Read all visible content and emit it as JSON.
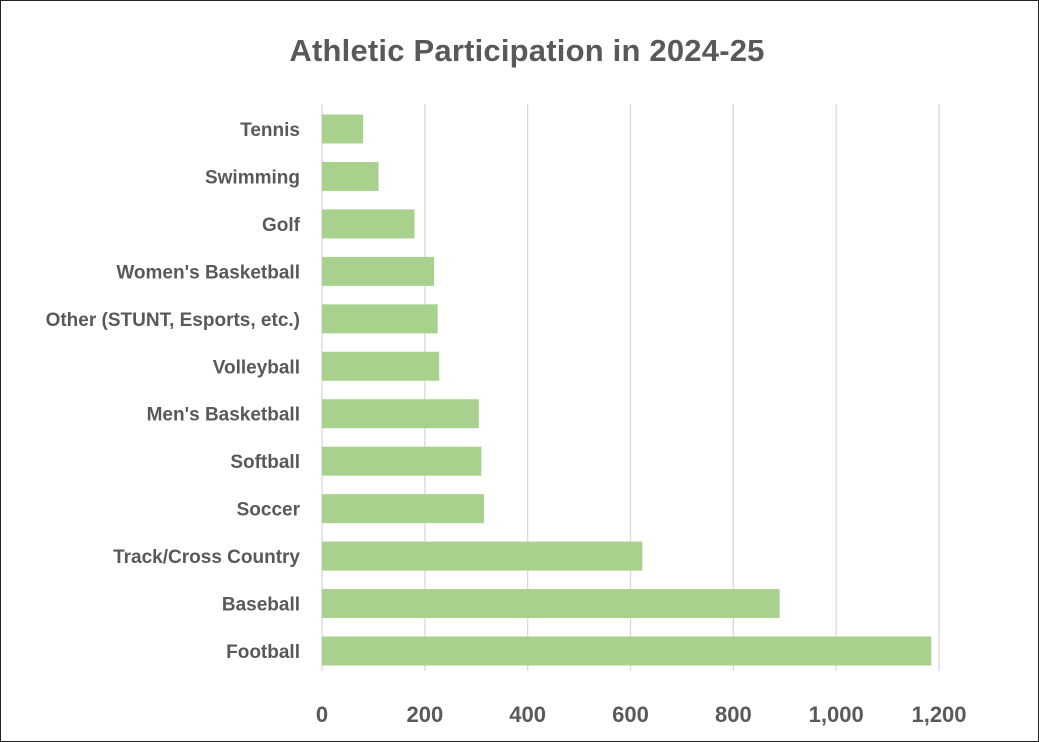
{
  "chart_data": {
    "type": "bar",
    "orientation": "horizontal",
    "title": "Athletic Participation in 2024-25",
    "xlabel": "",
    "ylabel": "",
    "categories": [
      "Tennis",
      "Swimming",
      "Golf",
      "Women's Basketball",
      "Other (STUNT, Esports, etc.)",
      "Volleyball",
      "Men's Basketball",
      "Softball",
      "Soccer",
      "Track/Cross Country",
      "Baseball",
      "Football"
    ],
    "values": [
      80,
      110,
      180,
      218,
      225,
      228,
      305,
      310,
      315,
      623,
      890,
      1185
    ],
    "xlim": [
      0,
      1200
    ],
    "xticks": [
      0,
      200,
      400,
      600,
      800,
      1000,
      1200
    ],
    "xtick_labels": [
      "0",
      "200",
      "400",
      "600",
      "800",
      "1,000",
      "1,200"
    ],
    "grid": true,
    "legend": "none",
    "bar_color": "#a9d18e",
    "gridline_color": "#d9d9d9",
    "text_color": "#595959"
  }
}
